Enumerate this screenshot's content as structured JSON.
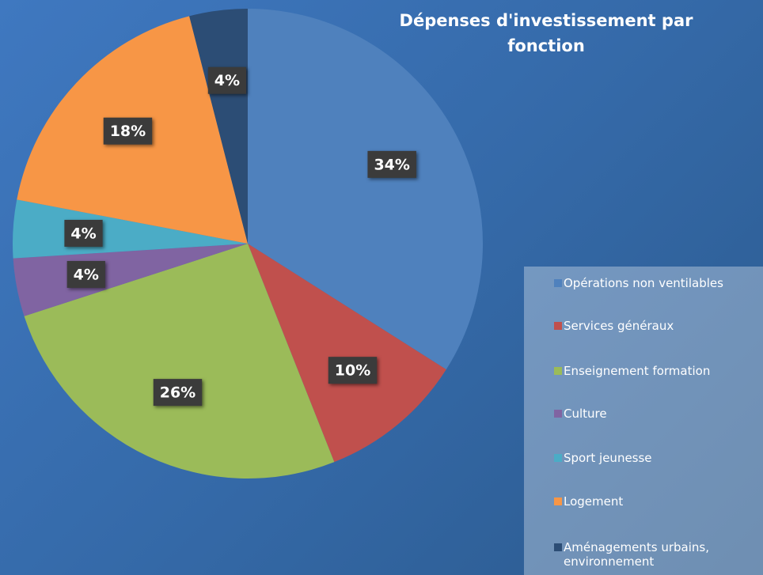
{
  "chart_data": {
    "type": "pie",
    "title": "Dépenses d'investissement par fonction",
    "categories": [
      "Opérations non ventilables",
      "Services généraux",
      "Enseignement formation",
      "Culture",
      "Sport jeunesse",
      "Logement",
      "Aménagements urbains, environnement"
    ],
    "values": [
      34,
      10,
      26,
      4,
      4,
      18,
      4
    ],
    "value_labels": [
      "34%",
      "10%",
      "26%",
      "4%",
      "4%",
      "18%",
      "4%"
    ],
    "colors": [
      "#4f81bd",
      "#c0504d",
      "#9bbb59",
      "#8064a2",
      "#4bacc6",
      "#f79646",
      "#2c4d75"
    ],
    "legend": "right"
  }
}
